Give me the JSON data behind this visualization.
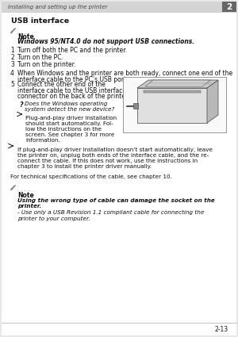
{
  "bg_color": "#e8e8e8",
  "page_bg": "#ffffff",
  "header_text": "Installing and setting up the printer",
  "header_chapter": "2",
  "section_title": "USB interface",
  "note1_bold_line": "Note",
  "note1_italic_line": "Windows 95/NT4.0 do not support USB connections.",
  "step1": "Turn off both the PC and the printer.",
  "step2": "Turn on the PC.",
  "step3": "Turn on the printer.",
  "step4a": "When Windows and the printer are both ready, connect one end of the",
  "step4b": "interface cable to the PC’s USB port .",
  "step5a": "Connect the other end of the",
  "step5b": "interface cable to the USB interface",
  "step5c": "connector on the back of the printer.",
  "question": "Does the Windows operating",
  "question2": "system detect the new device?",
  "plug1a": "Plug-and-play driver installation",
  "plug1b": "should start automatically. Fol-",
  "plug1c": "low the instructions on the",
  "plug1d": "screen. See chapter 3 for more",
  "plug1e": "information.",
  "plug2a": "If plug-and-play driver installation doesn’t start automatically, leave",
  "plug2b": "the printer on, unplug both ends of the interface cable, and the re-",
  "plug2c": "connect the cable. If this does not work, use the instructions in",
  "plug2d": "chapter 3 to install the printer driver manually.",
  "tech_spec": "For technical specifications of the cable, see chapter 10.",
  "note2_title": "Note",
  "note2_bold1": "Using the wrong type of cable can damage the socket on the",
  "note2_bold2": "printer.",
  "note2_italic1": "- Use only a USB Revision 1.1 compliant cable for connecting the",
  "note2_italic2": "printer to your computer.",
  "footer_text": "2-13",
  "text_color": "#111111",
  "gray_text": "#555555",
  "header_bg": "#d4d4d4",
  "chapter_bg": "#666666"
}
